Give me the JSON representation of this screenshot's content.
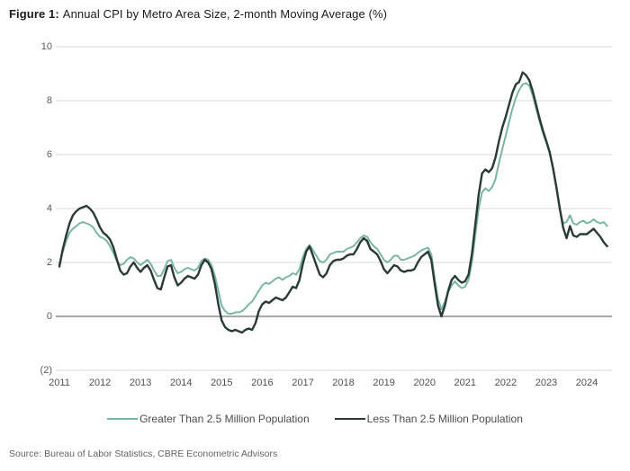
{
  "figure": {
    "label": "Figure 1:",
    "title": "Annual CPI by Metro Area Size, 2-month Moving Average (%)"
  },
  "source": "Source: Bureau of Labor Statistics, CBRE Econometric Advisors",
  "colors": {
    "background": "#FFFFFF",
    "title_text": "#1A1A1A",
    "tick_text": "#5B5B5B",
    "gridline": "#DADADA",
    "zero_line": "#4F4F4F",
    "legend_text": "#4D4D4D",
    "source_text": "#5E6567",
    "series_large_metro": "#79B5A4",
    "series_small_metro": "#2A3A37"
  },
  "chart_data": {
    "type": "line",
    "title": "Annual CPI by Metro Area Size, 2-month Moving Average (%)",
    "xlabel": "",
    "ylabel": "",
    "ylim": [
      -2,
      10
    ],
    "grid": "horizontal only, zero line darker",
    "legend_position": "bottom center",
    "x_start": "2011-01",
    "x_end": "2024-07",
    "x_step_months": 1,
    "xticks": [
      "2011",
      "2012",
      "2013",
      "2014",
      "2015",
      "2016",
      "2017",
      "2018",
      "2019",
      "2020",
      "2021",
      "2022",
      "2023",
      "2024"
    ],
    "yticks": {
      "values": [
        10,
        8,
        6,
        4,
        2,
        0,
        -2
      ],
      "labels": [
        "10",
        "8",
        "6",
        "4",
        "2",
        "0",
        "(2)"
      ]
    },
    "series": [
      {
        "name": "Greater Than 2.5 Million Population",
        "color": "#79B5A4",
        "values": [
          1.95,
          2.4,
          2.8,
          3.1,
          3.25,
          3.35,
          3.45,
          3.5,
          3.45,
          3.4,
          3.3,
          3.1,
          2.95,
          2.9,
          2.8,
          2.6,
          2.35,
          2.05,
          1.9,
          1.95,
          2.1,
          2.2,
          2.15,
          2.0,
          1.9,
          2.0,
          2.1,
          1.95,
          1.7,
          1.5,
          1.5,
          1.75,
          2.05,
          2.1,
          1.8,
          1.6,
          1.65,
          1.75,
          1.8,
          1.75,
          1.7,
          1.8,
          2.05,
          2.15,
          2.1,
          1.9,
          1.5,
          0.95,
          0.4,
          0.2,
          0.1,
          0.1,
          0.15,
          0.15,
          0.2,
          0.3,
          0.45,
          0.55,
          0.75,
          0.95,
          1.15,
          1.25,
          1.2,
          1.3,
          1.4,
          1.45,
          1.35,
          1.45,
          1.5,
          1.6,
          1.55,
          1.75,
          2.2,
          2.5,
          2.65,
          2.45,
          2.25,
          2.05,
          2.0,
          2.1,
          2.3,
          2.35,
          2.4,
          2.4,
          2.4,
          2.5,
          2.55,
          2.6,
          2.75,
          2.9,
          3.0,
          2.95,
          2.75,
          2.6,
          2.5,
          2.3,
          2.1,
          2.0,
          2.1,
          2.25,
          2.25,
          2.1,
          2.1,
          2.15,
          2.2,
          2.25,
          2.35,
          2.45,
          2.5,
          2.55,
          2.3,
          1.4,
          0.65,
          0.25,
          0.55,
          0.9,
          1.15,
          1.3,
          1.15,
          1.05,
          1.1,
          1.35,
          2.0,
          3.0,
          4.0,
          4.6,
          4.75,
          4.65,
          4.8,
          5.1,
          5.7,
          6.2,
          6.7,
          7.2,
          7.7,
          8.1,
          8.4,
          8.6,
          8.65,
          8.55,
          8.2,
          7.7,
          7.25,
          6.8,
          6.45,
          6.05,
          5.45,
          4.75,
          3.95,
          3.45,
          3.5,
          3.75,
          3.45,
          3.4,
          3.5,
          3.55,
          3.45,
          3.5,
          3.6,
          3.5,
          3.45,
          3.5,
          3.35
        ]
      },
      {
        "name": "Less Than 2.5 Million Population",
        "color": "#2A3A37",
        "values": [
          1.85,
          2.5,
          3.0,
          3.45,
          3.75,
          3.9,
          4.0,
          4.05,
          4.1,
          4.0,
          3.85,
          3.6,
          3.3,
          3.1,
          3.0,
          2.85,
          2.55,
          2.1,
          1.7,
          1.55,
          1.6,
          1.85,
          2.0,
          1.8,
          1.65,
          1.8,
          1.9,
          1.7,
          1.35,
          1.05,
          1.0,
          1.45,
          1.85,
          1.9,
          1.45,
          1.15,
          1.25,
          1.4,
          1.5,
          1.45,
          1.4,
          1.55,
          1.9,
          2.1,
          2.0,
          1.75,
          1.2,
          0.45,
          -0.15,
          -0.4,
          -0.5,
          -0.55,
          -0.5,
          -0.55,
          -0.6,
          -0.5,
          -0.45,
          -0.5,
          -0.25,
          0.2,
          0.45,
          0.55,
          0.5,
          0.6,
          0.7,
          0.65,
          0.6,
          0.7,
          0.9,
          1.1,
          1.05,
          1.35,
          1.95,
          2.4,
          2.6,
          2.25,
          1.9,
          1.55,
          1.45,
          1.6,
          1.9,
          2.05,
          2.1,
          2.1,
          2.15,
          2.25,
          2.3,
          2.3,
          2.5,
          2.75,
          2.9,
          2.8,
          2.5,
          2.4,
          2.3,
          2.05,
          1.75,
          1.6,
          1.75,
          1.9,
          1.85,
          1.7,
          1.65,
          1.7,
          1.7,
          1.75,
          2.0,
          2.2,
          2.3,
          2.4,
          2.1,
          1.2,
          0.4,
          0.0,
          0.4,
          0.95,
          1.35,
          1.5,
          1.35,
          1.25,
          1.3,
          1.55,
          2.3,
          3.4,
          4.5,
          5.3,
          5.45,
          5.35,
          5.5,
          5.9,
          6.5,
          7.0,
          7.4,
          7.85,
          8.3,
          8.6,
          8.7,
          9.05,
          8.95,
          8.75,
          8.35,
          7.85,
          7.35,
          6.9,
          6.5,
          6.1,
          5.5,
          4.8,
          4.0,
          3.3,
          2.9,
          3.35,
          3.0,
          2.95,
          3.05,
          3.05,
          3.05,
          3.15,
          3.25,
          3.1,
          2.95,
          2.75,
          2.6
        ]
      }
    ]
  }
}
